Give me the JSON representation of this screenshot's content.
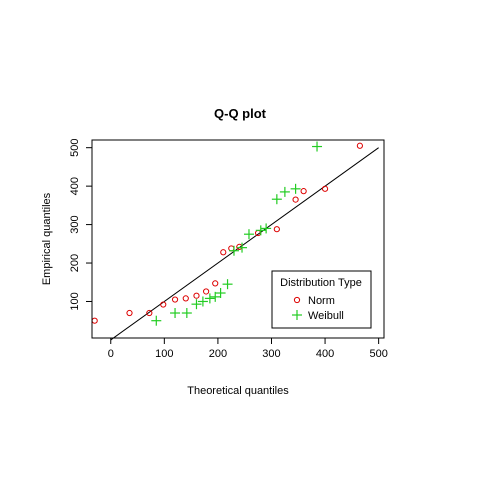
{
  "chart_data": {
    "type": "scatter",
    "title": "Q-Q plot",
    "xlabel": "Theoretical quantiles",
    "ylabel": "Empirical quantiles",
    "xlim": [
      -35,
      510
    ],
    "ylim": [
      5,
      520
    ],
    "xticks": [
      0,
      100,
      200,
      300,
      400,
      500
    ],
    "yticks": [
      100,
      200,
      300,
      400,
      500
    ],
    "xtick_labels": [
      "0",
      "100",
      "200",
      "300",
      "400",
      "500"
    ],
    "ytick_labels": [
      "100",
      "200",
      "300",
      "400",
      "500"
    ],
    "grid": false,
    "reference_line": {
      "x": [
        0,
        500
      ],
      "y": [
        0,
        500
      ],
      "color": "#000000"
    },
    "legend": {
      "title": "Distribution Type",
      "placement": "bottom-right",
      "entries": [
        "Norm",
        "Weibull"
      ]
    },
    "series": [
      {
        "name": "Norm",
        "marker": "open-circle",
        "color": "#dd0000",
        "points": [
          [
            -30,
            50
          ],
          [
            35,
            70
          ],
          [
            72,
            70
          ],
          [
            98,
            92
          ],
          [
            120,
            105
          ],
          [
            140,
            108
          ],
          [
            160,
            115
          ],
          [
            178,
            126
          ],
          [
            195,
            147
          ],
          [
            210,
            228
          ],
          [
            225,
            238
          ],
          [
            240,
            242
          ],
          [
            275,
            278
          ],
          [
            310,
            288
          ],
          [
            345,
            365
          ],
          [
            360,
            387
          ],
          [
            400,
            393
          ],
          [
            465,
            505
          ]
        ]
      },
      {
        "name": "Weibull",
        "marker": "plus",
        "color": "#22cc22",
        "points": [
          [
            85,
            50
          ],
          [
            120,
            70
          ],
          [
            142,
            70
          ],
          [
            160,
            93
          ],
          [
            172,
            100
          ],
          [
            185,
            108
          ],
          [
            195,
            112
          ],
          [
            205,
            122
          ],
          [
            218,
            145
          ],
          [
            230,
            232
          ],
          [
            245,
            240
          ],
          [
            258,
            275
          ],
          [
            280,
            285
          ],
          [
            290,
            290
          ],
          [
            310,
            366
          ],
          [
            325,
            385
          ],
          [
            345,
            393
          ],
          [
            385,
            503
          ]
        ]
      }
    ]
  }
}
